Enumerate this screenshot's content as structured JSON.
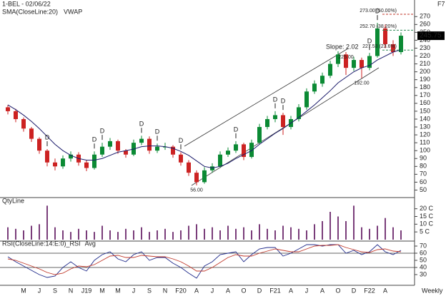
{
  "chart_data": [
    {
      "type": "candlestick",
      "title": "1-BEL - 02/06/22",
      "corner_label": "F7",
      "up_color": "#0b8a34",
      "down_color": "#cc2222",
      "ohlc": [
        [
          155,
          158,
          146,
          150
        ],
        [
          150,
          153,
          136,
          140
        ],
        [
          140,
          142,
          124,
          128
        ],
        [
          128,
          130,
          111,
          115
        ],
        [
          115,
          117,
          96,
          100
        ],
        [
          100,
          102,
          80,
          85
        ],
        [
          85,
          90,
          75,
          80
        ],
        [
          80,
          94,
          77,
          90
        ],
        [
          90,
          99,
          86,
          95
        ],
        [
          95,
          98,
          81,
          85
        ],
        [
          85,
          88,
          74,
          78
        ],
        [
          78,
          99,
          76,
          95
        ],
        [
          95,
          110,
          92,
          105
        ],
        [
          105,
          116,
          101,
          112
        ],
        [
          112,
          114,
          96,
          100
        ],
        [
          100,
          102,
          91,
          95
        ],
        [
          95,
          114,
          93,
          110
        ],
        [
          110,
          119,
          107,
          115
        ],
        [
          115,
          118,
          96,
          100
        ],
        [
          100,
          109,
          97,
          105
        ],
        [
          105,
          110,
          101,
          105
        ],
        [
          105,
          107,
          91,
          95
        ],
        [
          95,
          98,
          81,
          85
        ],
        [
          85,
          88,
          68,
          72
        ],
        [
          72,
          75,
          56,
          60
        ],
        [
          60,
          79,
          58,
          75
        ],
        [
          75,
          84,
          72,
          80
        ],
        [
          80,
          99,
          78,
          95
        ],
        [
          95,
          104,
          92,
          100
        ],
        [
          100,
          112,
          97,
          108
        ],
        [
          108,
          110,
          88,
          92
        ],
        [
          92,
          114,
          90,
          110
        ],
        [
          110,
          134,
          108,
          130
        ],
        [
          130,
          144,
          127,
          140
        ],
        [
          140,
          150,
          136,
          145
        ],
        [
          145,
          148,
          120,
          130
        ],
        [
          130,
          144,
          127,
          140
        ],
        [
          140,
          159,
          137,
          155
        ],
        [
          155,
          179,
          152,
          175
        ],
        [
          175,
          189,
          172,
          185
        ],
        [
          185,
          199,
          181,
          195
        ],
        [
          195,
          214,
          192,
          210
        ],
        [
          210,
          226,
          206,
          222
        ],
        [
          222,
          225,
          196,
          205
        ],
        [
          205,
          219,
          201,
          215
        ],
        [
          215,
          218,
          192,
          205
        ],
        [
          205,
          224,
          202,
          220
        ],
        [
          220,
          262,
          218,
          255
        ],
        [
          255,
          260,
          230,
          235
        ],
        [
          235,
          240,
          220,
          225
        ],
        [
          225,
          250,
          222,
          245.75
        ]
      ],
      "overlays": [
        {
          "name": "SMA(CloseLine:20)",
          "color": "#1b1b6b",
          "values": [
            158,
            152,
            145,
            137,
            128,
            118,
            108,
            100,
            94,
            90,
            88,
            88,
            90,
            94,
            98,
            100,
            102,
            105,
            106,
            106,
            105,
            103,
            99,
            94,
            87,
            80,
            78,
            80,
            84,
            90,
            95,
            100,
            108,
            115,
            122,
            128,
            135,
            142,
            150,
            158,
            167,
            176,
            186,
            193,
            200,
            205,
            208,
            215,
            220,
            225,
            228
          ]
        }
      ],
      "extra_legend": [
        {
          "name": "VWAP",
          "color": "#3a7bd5"
        }
      ],
      "ylim": [
        45,
        282
      ],
      "yticks": [
        50,
        60,
        70,
        80,
        90,
        100,
        110,
        120,
        130,
        140,
        150,
        160,
        170,
        180,
        190,
        200,
        210,
        220,
        230,
        240,
        250,
        260,
        270
      ],
      "fib_levels": [
        {
          "value": 273,
          "label": "273.00 (50.00%)",
          "color": "#c0392b"
        },
        {
          "value": 252.7,
          "label": "252.70 (38.20%)",
          "color": "#2e8b57"
        },
        {
          "value": 227.53,
          "label": "227.53 (23.6%)",
          "color": "#2e8b57"
        }
      ],
      "point_labels": [
        {
          "at": 24,
          "value": 56,
          "label": "56.00"
        },
        {
          "at": 43,
          "value": 225,
          "label": "225.00"
        },
        {
          "at": 45,
          "value": 192,
          "label": "192.00"
        }
      ],
      "trendline_label": "Slope: 2.02",
      "events": [
        {
          "at": 5,
          "label": "D"
        },
        {
          "at": 11,
          "label": "D"
        },
        {
          "at": 12,
          "label": "D"
        },
        {
          "at": 17,
          "label": "D"
        },
        {
          "at": 19,
          "label": "D"
        },
        {
          "at": 22,
          "label": "D"
        },
        {
          "at": 29,
          "label": "D"
        },
        {
          "at": 34,
          "label": "D"
        },
        {
          "at": 35,
          "label": "D"
        },
        {
          "at": 46,
          "label": "D"
        },
        {
          "at": 47,
          "label": "D"
        }
      ]
    },
    {
      "type": "bar",
      "title": "QtyLine",
      "color": "#7a3d7a",
      "values": [
        8,
        7,
        6,
        9,
        10,
        22,
        8,
        6,
        5,
        7,
        6,
        5,
        9,
        6,
        5,
        7,
        6,
        8,
        5,
        6,
        7,
        5,
        6,
        9,
        10,
        7,
        8,
        6,
        9,
        7,
        8,
        6,
        10,
        7,
        6,
        9,
        8,
        7,
        6,
        10,
        12,
        18,
        15,
        12,
        22,
        8,
        7,
        9,
        14,
        8,
        6
      ],
      "ylim": [
        0,
        24
      ],
      "yticks": [
        {
          "value": 5,
          "label": "5 C"
        },
        {
          "value": 10,
          "label": "10 C"
        },
        {
          "value": 15,
          "label": "15 C"
        },
        {
          "value": 20,
          "label": "20 C"
        }
      ]
    },
    {
      "type": "line",
      "title": "RSI(CloseLine:14:E:0)",
      "period": "Weekly",
      "categories": [
        null,
        null,
        "M",
        null,
        "J",
        null,
        "S",
        null,
        "N",
        null,
        "J19",
        null,
        "M",
        null,
        "M",
        null,
        "J",
        null,
        "S",
        null,
        "N",
        null,
        "F20",
        null,
        "A",
        null,
        "J",
        null,
        "A",
        null,
        "O",
        null,
        "D",
        null,
        "F21",
        null,
        "A",
        null,
        "J",
        null,
        "A",
        null,
        "O",
        null,
        "D",
        null,
        "F22",
        null,
        "A",
        null,
        null
      ],
      "series": [
        {
          "name": "_RSI",
          "color": "#1f2a8a",
          "values": [
            55,
            48,
            42,
            36,
            30,
            26,
            28,
            40,
            48,
            40,
            35,
            50,
            58,
            62,
            52,
            48,
            58,
            62,
            50,
            54,
            54,
            46,
            40,
            32,
            25,
            42,
            48,
            58,
            60,
            62,
            48,
            58,
            66,
            68,
            68,
            56,
            60,
            66,
            72,
            72,
            70,
            72,
            72,
            60,
            64,
            58,
            62,
            72,
            62,
            58,
            64
          ]
        },
        {
          "name": "Avg",
          "color": "#c0392b",
          "values": [
            52,
            50,
            46,
            42,
            38,
            33,
            30,
            32,
            38,
            42,
            41,
            44,
            50,
            56,
            57,
            54,
            54,
            57,
            56,
            55,
            55,
            52,
            48,
            42,
            35,
            35,
            40,
            47,
            54,
            58,
            56,
            56,
            60,
            63,
            66,
            64,
            62,
            62,
            66,
            70,
            71,
            71,
            72,
            68,
            65,
            62,
            61,
            65,
            66,
            63,
            62
          ]
        }
      ],
      "ylim": [
        20,
        77
      ],
      "yticks": [
        30,
        40,
        50,
        60,
        70
      ],
      "bands": [
        40,
        60
      ]
    }
  ]
}
